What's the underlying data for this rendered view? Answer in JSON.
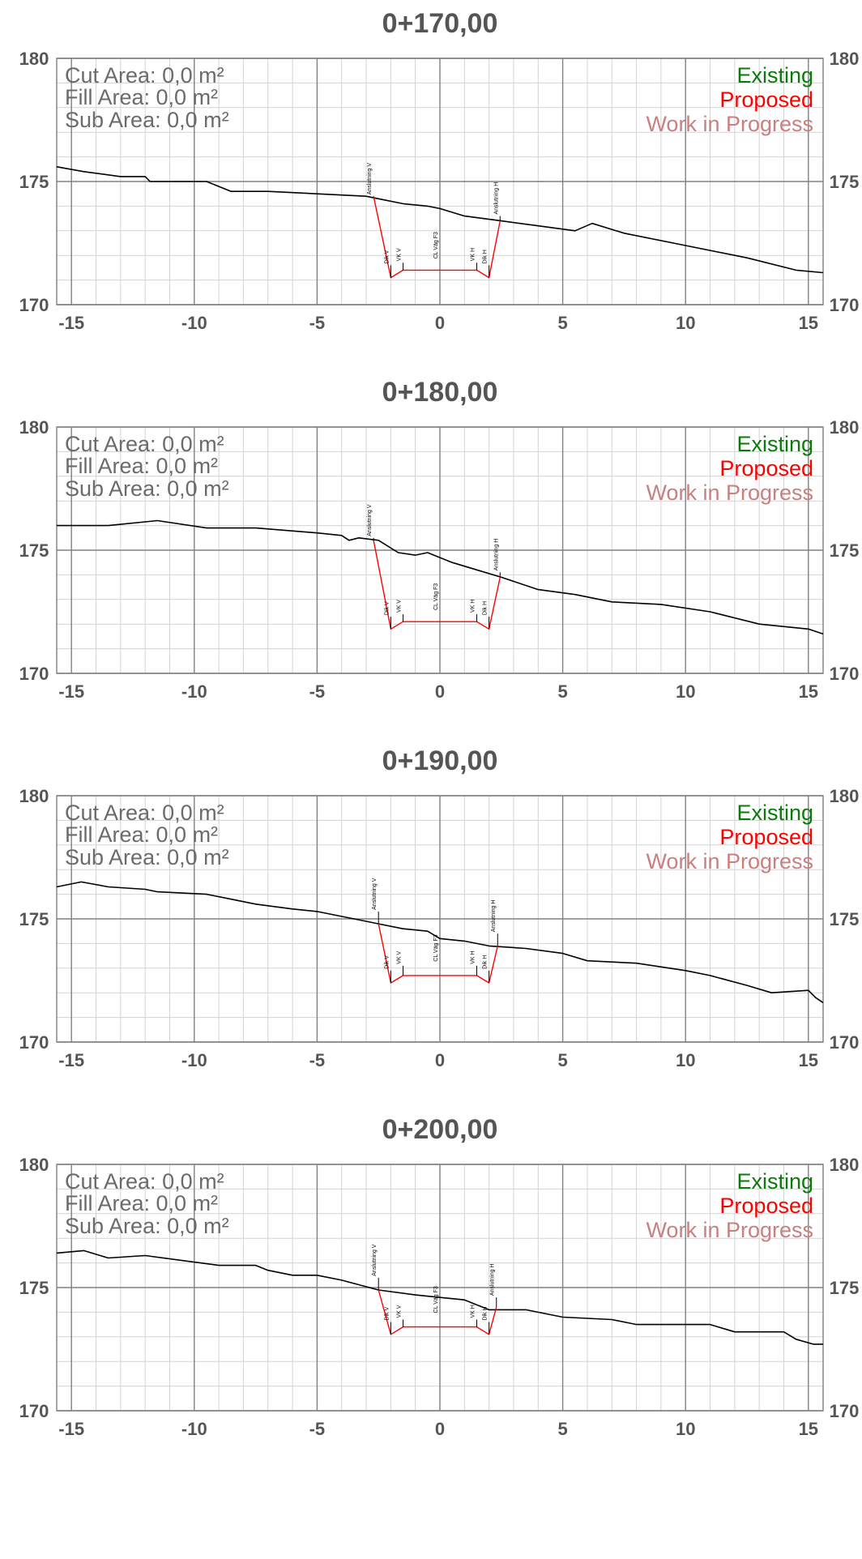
{
  "legend": {
    "existing": "Existing",
    "proposed": "Proposed",
    "wip": "Work in Progress"
  },
  "colors": {
    "existing_legend": "#0a7a0a",
    "proposed": "#ff0000",
    "wip": "#c88080",
    "ground": "#000000",
    "area_text": "#6b6b6b",
    "major_grid": "#808080",
    "minor_grid": "#d3d3d3"
  },
  "areas": {
    "cut": "Cut Area: 0,0 m²",
    "fill": "Fill Area:  0,0 m²",
    "sub": "Sub Area: 0,0 m²"
  },
  "chart_data": [
    {
      "type": "line",
      "title": "0+170,00",
      "xlim": [
        -15.6,
        15.6
      ],
      "ylim": [
        170,
        180
      ],
      "xticks": [
        "-15",
        "-10",
        "-5",
        "0",
        "5",
        "10",
        "15"
      ],
      "yticks": [
        "180",
        "175",
        "170"
      ],
      "grid": true,
      "series": [
        {
          "role": "existing-ground",
          "points": [
            [
              -15.6,
              175.6
            ],
            [
              -14.5,
              175.4
            ],
            [
              -13,
              175.2
            ],
            [
              -12,
              175.2
            ],
            [
              -11.8,
              175.0
            ],
            [
              -11,
              175.0
            ],
            [
              -9.5,
              175.0
            ],
            [
              -8.5,
              174.6
            ],
            [
              -7,
              174.6
            ],
            [
              -5,
              174.5
            ],
            [
              -3,
              174.4
            ],
            [
              -2.5,
              174.3
            ],
            [
              -1.5,
              174.1
            ],
            [
              -0.5,
              174.0
            ],
            [
              0,
              173.9
            ],
            [
              1,
              173.6
            ],
            [
              2.5,
              173.4
            ],
            [
              4,
              173.2
            ],
            [
              5.5,
              173.0
            ],
            [
              6.2,
              173.3
            ],
            [
              7.5,
              172.9
            ],
            [
              10,
              172.4
            ],
            [
              12.5,
              171.9
            ],
            [
              14.5,
              171.4
            ],
            [
              15.6,
              171.3
            ]
          ]
        },
        {
          "role": "proposed",
          "points": [
            [
              -2.7,
              174.4
            ],
            [
              -2.0,
              171.1
            ],
            [
              -1.5,
              171.4
            ],
            [
              1.5,
              171.4
            ],
            [
              2.0,
              171.1
            ],
            [
              2.45,
              173.4
            ]
          ]
        }
      ],
      "labels": [
        {
          "text": "Anslutning V",
          "x": -2.7,
          "y_bottom": 174.4
        },
        {
          "text": "Dik V",
          "x": -2.0,
          "y_bottom": 171.6
        },
        {
          "text": "VK V",
          "x": -1.5,
          "y_bottom": 171.7
        },
        {
          "text": "CL Väg F3",
          "x": 0,
          "y_bottom": 171.8
        },
        {
          "text": "VK H",
          "x": 1.5,
          "y_bottom": 171.7
        },
        {
          "text": "Dik H",
          "x": 2.0,
          "y_bottom": 171.6
        },
        {
          "text": "Anslutning H",
          "x": 2.45,
          "y_bottom": 173.6
        }
      ]
    },
    {
      "type": "line",
      "title": "0+180,00",
      "xlim": [
        -15.6,
        15.6
      ],
      "ylim": [
        170,
        180
      ],
      "xticks": [
        "-15",
        "-10",
        "-5",
        "0",
        "5",
        "10",
        "15"
      ],
      "yticks": [
        "180",
        "175",
        "170"
      ],
      "grid": true,
      "series": [
        {
          "role": "existing-ground",
          "points": [
            [
              -15.6,
              176.0
            ],
            [
              -13.5,
              176.0
            ],
            [
              -11.5,
              176.2
            ],
            [
              -9.5,
              175.9
            ],
            [
              -7.5,
              175.9
            ],
            [
              -5,
              175.7
            ],
            [
              -4,
              175.6
            ],
            [
              -3.7,
              175.4
            ],
            [
              -3.3,
              175.5
            ],
            [
              -2.5,
              175.4
            ],
            [
              -1.7,
              174.9
            ],
            [
              -1,
              174.8
            ],
            [
              -0.5,
              174.9
            ],
            [
              0.5,
              174.5
            ],
            [
              1.5,
              174.2
            ],
            [
              2.5,
              173.9
            ],
            [
              4,
              173.4
            ],
            [
              5.5,
              173.2
            ],
            [
              7,
              172.9
            ],
            [
              9,
              172.8
            ],
            [
              11,
              172.5
            ],
            [
              13,
              172.0
            ],
            [
              15,
              171.8
            ],
            [
              15.6,
              171.6
            ]
          ]
        },
        {
          "role": "proposed",
          "points": [
            [
              -2.7,
              175.4
            ],
            [
              -2.0,
              171.8
            ],
            [
              -1.5,
              172.1
            ],
            [
              1.5,
              172.1
            ],
            [
              2.0,
              171.8
            ],
            [
              2.45,
              173.9
            ]
          ]
        }
      ],
      "labels": [
        {
          "text": "Anslutning V",
          "x": -2.7,
          "y_bottom": 175.5
        },
        {
          "text": "Dik V",
          "x": -2.0,
          "y_bottom": 172.3
        },
        {
          "text": "VK V",
          "x": -1.5,
          "y_bottom": 172.4
        },
        {
          "text": "CL Väg F3",
          "x": 0,
          "y_bottom": 172.5
        },
        {
          "text": "VK H",
          "x": 1.5,
          "y_bottom": 172.4
        },
        {
          "text": "Dik H",
          "x": 2.0,
          "y_bottom": 172.3
        },
        {
          "text": "Anslutning H",
          "x": 2.45,
          "y_bottom": 174.1
        }
      ]
    },
    {
      "type": "line",
      "title": "0+190,00",
      "xlim": [
        -15.6,
        15.6
      ],
      "ylim": [
        170,
        180
      ],
      "xticks": [
        "-15",
        "-10",
        "-5",
        "0",
        "5",
        "10",
        "15"
      ],
      "yticks": [
        "180",
        "175",
        "170"
      ],
      "grid": true,
      "series": [
        {
          "role": "existing-ground",
          "points": [
            [
              -15.6,
              176.3
            ],
            [
              -14.6,
              176.5
            ],
            [
              -13.5,
              176.3
            ],
            [
              -12,
              176.2
            ],
            [
              -11.5,
              176.1
            ],
            [
              -9.5,
              176.0
            ],
            [
              -8.5,
              175.8
            ],
            [
              -7.5,
              175.6
            ],
            [
              -6,
              175.4
            ],
            [
              -5,
              175.3
            ],
            [
              -3,
              174.9
            ],
            [
              -2.5,
              174.8
            ],
            [
              -1.5,
              174.6
            ],
            [
              -0.5,
              174.5
            ],
            [
              0,
              174.2
            ],
            [
              1,
              174.1
            ],
            [
              2,
              173.9
            ],
            [
              3.5,
              173.8
            ],
            [
              5,
              173.6
            ],
            [
              6,
              173.3
            ],
            [
              8,
              173.2
            ],
            [
              10,
              172.9
            ],
            [
              11,
              172.7
            ],
            [
              12.5,
              172.3
            ],
            [
              13.5,
              172.0
            ],
            [
              15,
              172.1
            ],
            [
              15.3,
              171.8
            ],
            [
              15.6,
              171.6
            ]
          ]
        },
        {
          "role": "proposed",
          "points": [
            [
              -2.5,
              174.8
            ],
            [
              -2.0,
              172.4
            ],
            [
              -1.5,
              172.7
            ],
            [
              1.5,
              172.7
            ],
            [
              2.0,
              172.4
            ],
            [
              2.35,
              173.9
            ]
          ]
        }
      ],
      "labels": [
        {
          "text": "Anslutning V",
          "x": -2.5,
          "y_bottom": 175.3
        },
        {
          "text": "Dik V",
          "x": -2.0,
          "y_bottom": 172.9
        },
        {
          "text": "VK V",
          "x": -1.5,
          "y_bottom": 173.1
        },
        {
          "text": "CL Väg F3",
          "x": 0,
          "y_bottom": 173.2
        },
        {
          "text": "VK H",
          "x": 1.5,
          "y_bottom": 173.1
        },
        {
          "text": "Dik H",
          "x": 2.0,
          "y_bottom": 172.9
        },
        {
          "text": "Anslutning H",
          "x": 2.35,
          "y_bottom": 174.4
        }
      ]
    },
    {
      "type": "line",
      "title": "0+200,00",
      "xlim": [
        -15.6,
        15.6
      ],
      "ylim": [
        170,
        180
      ],
      "xticks": [
        "-15",
        "-10",
        "-5",
        "0",
        "5",
        "10",
        "15"
      ],
      "yticks": [
        "180",
        "175",
        "170"
      ],
      "grid": true,
      "series": [
        {
          "role": "existing-ground",
          "points": [
            [
              -15.6,
              176.4
            ],
            [
              -14.5,
              176.5
            ],
            [
              -13.5,
              176.2
            ],
            [
              -12,
              176.3
            ],
            [
              -10.5,
              176.1
            ],
            [
              -9,
              175.9
            ],
            [
              -7.5,
              175.9
            ],
            [
              -7,
              175.7
            ],
            [
              -6,
              175.5
            ],
            [
              -5,
              175.5
            ],
            [
              -4,
              175.3
            ],
            [
              -2.5,
              174.9
            ],
            [
              -1,
              174.7
            ],
            [
              0,
              174.6
            ],
            [
              1,
              174.5
            ],
            [
              2,
              174.1
            ],
            [
              3.5,
              174.1
            ],
            [
              5,
              173.8
            ],
            [
              7,
              173.7
            ],
            [
              8,
              173.5
            ],
            [
              10,
              173.5
            ],
            [
              11,
              173.5
            ],
            [
              12,
              173.2
            ],
            [
              14,
              173.2
            ],
            [
              14.5,
              172.9
            ],
            [
              15.2,
              172.7
            ],
            [
              15.6,
              172.7
            ]
          ]
        },
        {
          "role": "proposed",
          "points": [
            [
              -2.5,
              174.9
            ],
            [
              -2.0,
              173.1
            ],
            [
              -1.5,
              173.4
            ],
            [
              1.5,
              173.4
            ],
            [
              2.0,
              173.1
            ],
            [
              2.3,
              174.2
            ]
          ]
        }
      ],
      "labels": [
        {
          "text": "Anslutning V",
          "x": -2.5,
          "y_bottom": 175.4
        },
        {
          "text": "Dik V",
          "x": -2.0,
          "y_bottom": 173.6
        },
        {
          "text": "VK V",
          "x": -1.5,
          "y_bottom": 173.7
        },
        {
          "text": "CL Väg F3",
          "x": 0,
          "y_bottom": 173.9
        },
        {
          "text": "VK H",
          "x": 1.5,
          "y_bottom": 173.7
        },
        {
          "text": "Dik H",
          "x": 2.0,
          "y_bottom": 173.6
        },
        {
          "text": "Anslutning H",
          "x": 2.3,
          "y_bottom": 174.6
        }
      ]
    }
  ]
}
